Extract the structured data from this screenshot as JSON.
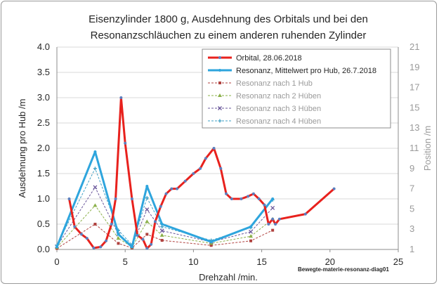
{
  "chart_data": {
    "type": "line",
    "title_lines": [
      "Eisenzylinder 1800 g, Ausdehnung des Orbitals und bei den",
      "Resonanzschläuchen zu einem anderen ruhenden Zylinder"
    ],
    "xlabel": "Drehzahl /min.",
    "ylabel": "Ausdehnung pro Hub /m",
    "y2label": "Position /m",
    "xlim": [
      0,
      25
    ],
    "ylim": [
      0,
      4
    ],
    "y2lim": [
      1,
      21
    ],
    "xticks": [
      "0",
      "5",
      "10",
      "15",
      "20",
      "25"
    ],
    "yticks": [
      "0.0",
      "0.5",
      "1.0",
      "1.5",
      "2.0",
      "2.5",
      "3.0",
      "3.5",
      "4.0"
    ],
    "y2ticks": [
      "1",
      "3",
      "5",
      "7",
      "9",
      "11",
      "13",
      "15",
      "17",
      "19",
      "21"
    ],
    "annotation": "Bewegte-materie-resonanz-diag01",
    "series": [
      {
        "name": "Orbital, 28.06.2018",
        "color": "#e8211d",
        "marker_color": "#5b7fbf",
        "style": "solid-bold",
        "points": [
          [
            0.9,
            1.0
          ],
          [
            1.3,
            0.45
          ],
          [
            1.8,
            0.3
          ],
          [
            2.2,
            0.22
          ],
          [
            2.7,
            0.03
          ],
          [
            3.2,
            0.05
          ],
          [
            3.6,
            0.17
          ],
          [
            4.0,
            0.5
          ],
          [
            4.3,
            1.0
          ],
          [
            4.7,
            3.0
          ],
          [
            5.0,
            2.1
          ],
          [
            5.5,
            1.0
          ],
          [
            5.9,
            0.28
          ],
          [
            6.3,
            0.2
          ],
          [
            6.6,
            0.02
          ],
          [
            6.9,
            0.1
          ],
          [
            7.2,
            0.55
          ],
          [
            7.6,
            0.85
          ],
          [
            8.0,
            1.1
          ],
          [
            8.4,
            1.2
          ],
          [
            8.8,
            1.2
          ],
          [
            9.4,
            1.35
          ],
          [
            10.0,
            1.5
          ],
          [
            10.5,
            1.6
          ],
          [
            10.9,
            1.8
          ],
          [
            11.5,
            2.0
          ],
          [
            12.0,
            1.6
          ],
          [
            12.4,
            1.1
          ],
          [
            12.8,
            1.0
          ],
          [
            13.5,
            1.0
          ],
          [
            14.0,
            1.05
          ],
          [
            14.4,
            1.1
          ],
          [
            14.8,
            1.0
          ],
          [
            15.2,
            0.88
          ],
          [
            15.5,
            0.5
          ],
          [
            15.8,
            0.6
          ],
          [
            16.0,
            0.5
          ],
          [
            16.3,
            0.6
          ],
          [
            18.2,
            0.7
          ],
          [
            20.3,
            1.2
          ]
        ]
      },
      {
        "name": "Resonanz, Mittelwert pro Hub, 26.7.2018",
        "color": "#2ea5dd",
        "style": "solid-bold",
        "points": [
          [
            0,
            0.05
          ],
          [
            2.8,
            1.93
          ],
          [
            4.5,
            0.3
          ],
          [
            5.5,
            0.05
          ],
          [
            6.6,
            1.25
          ],
          [
            7.7,
            0.5
          ],
          [
            11.3,
            0.15
          ],
          [
            14.2,
            0.45
          ],
          [
            15.8,
            1.0
          ]
        ]
      },
      {
        "name": "Resonanz nach 1 Hub",
        "color": "#b0423f",
        "style": "dashed",
        "points": [
          [
            0,
            0.02
          ],
          [
            2.8,
            0.5
          ],
          [
            4.5,
            0.12
          ],
          [
            5.5,
            0.03
          ],
          [
            6.6,
            0.3
          ],
          [
            7.7,
            0.18
          ],
          [
            11.3,
            0.08
          ],
          [
            14.2,
            0.17
          ],
          [
            15.8,
            0.38
          ]
        ]
      },
      {
        "name": "Resonanz nach 2 Hüben",
        "color": "#8bb04a",
        "style": "dashed",
        "points": [
          [
            0,
            0.04
          ],
          [
            2.8,
            0.87
          ],
          [
            4.5,
            0.22
          ],
          [
            5.5,
            0.05
          ],
          [
            6.6,
            0.55
          ],
          [
            7.7,
            0.28
          ],
          [
            11.3,
            0.12
          ],
          [
            14.2,
            0.26
          ],
          [
            15.8,
            0.6
          ]
        ]
      },
      {
        "name": "Resonanz nach 3 Hüben",
        "color": "#6a579b",
        "style": "dashed",
        "points": [
          [
            0,
            0.06
          ],
          [
            2.8,
            1.23
          ],
          [
            4.5,
            0.3
          ],
          [
            5.5,
            0.07
          ],
          [
            6.6,
            0.79
          ],
          [
            7.7,
            0.37
          ],
          [
            11.3,
            0.15
          ],
          [
            14.2,
            0.35
          ],
          [
            15.8,
            0.82
          ]
        ]
      },
      {
        "name": "Resonanz nach 4 Hüben",
        "color": "#3d9fc4",
        "style": "dashed",
        "points": [
          [
            0,
            0.08
          ],
          [
            2.8,
            1.6
          ],
          [
            4.5,
            0.38
          ],
          [
            5.5,
            0.09
          ],
          [
            6.6,
            1.02
          ],
          [
            7.7,
            0.45
          ],
          [
            11.3,
            0.18
          ],
          [
            14.2,
            0.43
          ],
          [
            15.8,
            0.98
          ]
        ]
      }
    ]
  }
}
